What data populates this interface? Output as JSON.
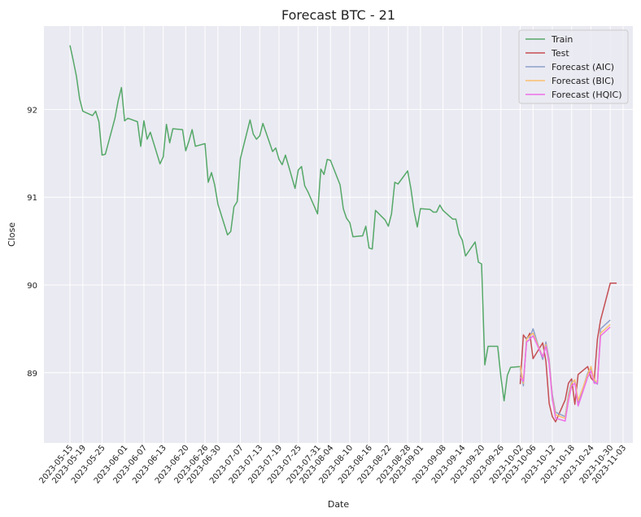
{
  "chart_data": {
    "type": "line",
    "title": "Forecast BTC - 21",
    "xlabel": "Date",
    "ylabel": "Close",
    "ylim": [
      88.2,
      92.95
    ],
    "yticks": [
      89,
      90,
      91,
      92
    ],
    "xticks": [
      "2023-05-15",
      "2023-05-19",
      "2023-05-25",
      "2023-06-01",
      "2023-06-07",
      "2023-06-13",
      "2023-06-20",
      "2023-06-26",
      "2023-06-30",
      "2023-07-07",
      "2023-07-13",
      "2023-07-19",
      "2023-07-25",
      "2023-07-31",
      "2023-08-04",
      "2023-08-10",
      "2023-08-16",
      "2023-08-22",
      "2023-08-28",
      "2023-09-01",
      "2023-09-08",
      "2023-09-14",
      "2023-09-20",
      "2023-09-26",
      "2023-10-02",
      "2023-10-06",
      "2023-10-12",
      "2023-10-18",
      "2023-10-24",
      "2023-10-30",
      "2023-11-03"
    ],
    "grid": true,
    "legend_position": "top-right",
    "colors": {
      "background": "#eaeaf2",
      "grid": "#ffffff"
    },
    "series": [
      {
        "name": "Train",
        "color": "#55a868",
        "x": [
          "2023-05-15",
          "2023-05-16",
          "2023-05-17",
          "2023-05-18",
          "2023-05-19",
          "2023-05-22",
          "2023-05-23",
          "2023-05-24",
          "2023-05-25",
          "2023-05-26",
          "2023-05-29",
          "2023-05-30",
          "2023-05-31",
          "2023-06-01",
          "2023-06-02",
          "2023-06-05",
          "2023-06-06",
          "2023-06-07",
          "2023-06-08",
          "2023-06-09",
          "2023-06-12",
          "2023-06-13",
          "2023-06-14",
          "2023-06-15",
          "2023-06-16",
          "2023-06-19",
          "2023-06-20",
          "2023-06-21",
          "2023-06-22",
          "2023-06-23",
          "2023-06-26",
          "2023-06-27",
          "2023-06-28",
          "2023-06-29",
          "2023-06-30",
          "2023-07-03",
          "2023-07-04",
          "2023-07-05",
          "2023-07-06",
          "2023-07-07",
          "2023-07-10",
          "2023-07-11",
          "2023-07-12",
          "2023-07-13",
          "2023-07-14",
          "2023-07-17",
          "2023-07-18",
          "2023-07-19",
          "2023-07-20",
          "2023-07-21",
          "2023-07-24",
          "2023-07-25",
          "2023-07-26",
          "2023-07-27",
          "2023-07-28",
          "2023-07-31",
          "2023-08-01",
          "2023-08-02",
          "2023-08-03",
          "2023-08-04",
          "2023-08-07",
          "2023-08-08",
          "2023-08-09",
          "2023-08-10",
          "2023-08-11",
          "2023-08-14",
          "2023-08-15",
          "2023-08-16",
          "2023-08-17",
          "2023-08-18",
          "2023-08-21",
          "2023-08-22",
          "2023-08-23",
          "2023-08-24",
          "2023-08-25",
          "2023-08-28",
          "2023-08-29",
          "2023-08-30",
          "2023-08-31",
          "2023-09-01",
          "2023-09-04",
          "2023-09-05",
          "2023-09-06",
          "2023-09-07",
          "2023-09-08",
          "2023-09-11",
          "2023-09-12",
          "2023-09-13",
          "2023-09-14",
          "2023-09-15",
          "2023-09-18",
          "2023-09-19",
          "2023-09-20",
          "2023-09-21",
          "2023-09-22",
          "2023-09-25",
          "2023-09-26",
          "2023-09-27",
          "2023-09-28",
          "2023-09-29",
          "2023-10-02"
        ],
        "y": [
          92.73,
          92.56,
          92.38,
          92.12,
          91.98,
          91.93,
          91.98,
          91.86,
          91.48,
          91.49,
          91.9,
          92.1,
          92.25,
          91.87,
          91.9,
          91.86,
          91.58,
          91.87,
          91.66,
          91.74,
          91.38,
          91.46,
          91.83,
          91.62,
          91.78,
          91.77,
          91.53,
          91.64,
          91.77,
          91.58,
          91.61,
          91.17,
          91.28,
          91.14,
          90.92,
          90.57,
          90.61,
          90.89,
          90.95,
          91.44,
          91.88,
          91.72,
          91.66,
          91.7,
          91.84,
          91.52,
          91.56,
          91.43,
          91.37,
          91.48,
          91.1,
          91.31,
          91.35,
          91.13,
          91.06,
          90.81,
          91.32,
          91.26,
          91.43,
          91.42,
          91.14,
          90.87,
          90.76,
          90.71,
          90.55,
          90.56,
          90.67,
          90.42,
          90.41,
          90.85,
          90.74,
          90.67,
          90.81,
          91.17,
          91.15,
          91.3,
          91.1,
          90.84,
          90.66,
          90.87,
          90.86,
          90.83,
          90.83,
          90.91,
          90.85,
          90.75,
          90.75,
          90.58,
          90.51,
          90.33,
          90.49,
          90.26,
          90.24,
          89.09,
          89.3,
          89.3,
          88.95,
          88.68,
          88.97,
          89.06,
          89.07
        ]
      },
      {
        "name": "Test",
        "color": "#c44e52",
        "x": [
          "2023-10-02",
          "2023-10-03",
          "2023-10-04",
          "2023-10-05",
          "2023-10-06",
          "2023-10-09",
          "2023-10-10",
          "2023-10-11",
          "2023-10-12",
          "2023-10-13",
          "2023-10-16",
          "2023-10-17",
          "2023-10-18",
          "2023-10-19",
          "2023-10-20",
          "2023-10-23",
          "2023-10-24",
          "2023-10-25",
          "2023-10-26",
          "2023-10-27",
          "2023-10-30",
          "2023-10-31",
          "2023-11-01"
        ],
        "y": [
          88.87,
          89.43,
          89.38,
          89.45,
          89.16,
          89.34,
          89.13,
          88.65,
          88.5,
          88.44,
          88.69,
          88.88,
          88.93,
          88.64,
          88.98,
          89.07,
          88.94,
          88.9,
          89.38,
          89.6,
          90.02,
          90.02,
          90.02
        ]
      },
      {
        "name": "Forecast (AIC)",
        "color": "#8da0cb",
        "x": [
          "2023-10-02",
          "2023-10-03",
          "2023-10-04",
          "2023-10-05",
          "2023-10-06",
          "2023-10-09",
          "2023-10-10",
          "2023-10-11",
          "2023-10-12",
          "2023-10-13",
          "2023-10-16",
          "2023-10-17",
          "2023-10-18",
          "2023-10-19",
          "2023-10-20",
          "2023-10-23",
          "2023-10-24",
          "2023-10-25",
          "2023-10-26",
          "2023-10-27",
          "2023-10-30"
        ],
        "y": [
          89.05,
          88.85,
          89.4,
          89.4,
          89.5,
          89.15,
          89.35,
          89.15,
          88.75,
          88.55,
          88.5,
          88.75,
          88.9,
          88.9,
          88.65,
          89.0,
          89.05,
          88.9,
          88.87,
          89.5,
          89.6
        ]
      },
      {
        "name": "Forecast (BIC)",
        "color": "#fdbf6f",
        "x": [
          "2023-10-02",
          "2023-10-03",
          "2023-10-04",
          "2023-10-05",
          "2023-10-06",
          "2023-10-09",
          "2023-10-10",
          "2023-10-11",
          "2023-10-12",
          "2023-10-13",
          "2023-10-16",
          "2023-10-17",
          "2023-10-18",
          "2023-10-19",
          "2023-10-20",
          "2023-10-23",
          "2023-10-24",
          "2023-10-25",
          "2023-10-26",
          "2023-10-27",
          "2023-10-30"
        ],
        "y": [
          89.08,
          88.88,
          89.38,
          89.42,
          89.45,
          89.18,
          89.32,
          89.12,
          88.72,
          88.52,
          88.48,
          88.72,
          88.88,
          88.92,
          88.68,
          88.98,
          89.07,
          88.92,
          88.89,
          89.45,
          89.55
        ]
      },
      {
        "name": "Forecast (HQIC)",
        "color": "#ee6ee8",
        "x": [
          "2023-10-02",
          "2023-10-03",
          "2023-10-04",
          "2023-10-05",
          "2023-10-06",
          "2023-10-09",
          "2023-10-10",
          "2023-10-11",
          "2023-10-12",
          "2023-10-13",
          "2023-10-16",
          "2023-10-17",
          "2023-10-18",
          "2023-10-19",
          "2023-10-20",
          "2023-10-23",
          "2023-10-24",
          "2023-10-25",
          "2023-10-26",
          "2023-10-27",
          "2023-10-30"
        ],
        "y": [
          88.95,
          88.9,
          89.35,
          89.38,
          89.42,
          89.18,
          89.3,
          89.1,
          88.7,
          88.48,
          88.45,
          88.68,
          88.85,
          88.88,
          88.62,
          88.95,
          89.02,
          88.88,
          88.88,
          89.42,
          89.52
        ]
      }
    ]
  }
}
